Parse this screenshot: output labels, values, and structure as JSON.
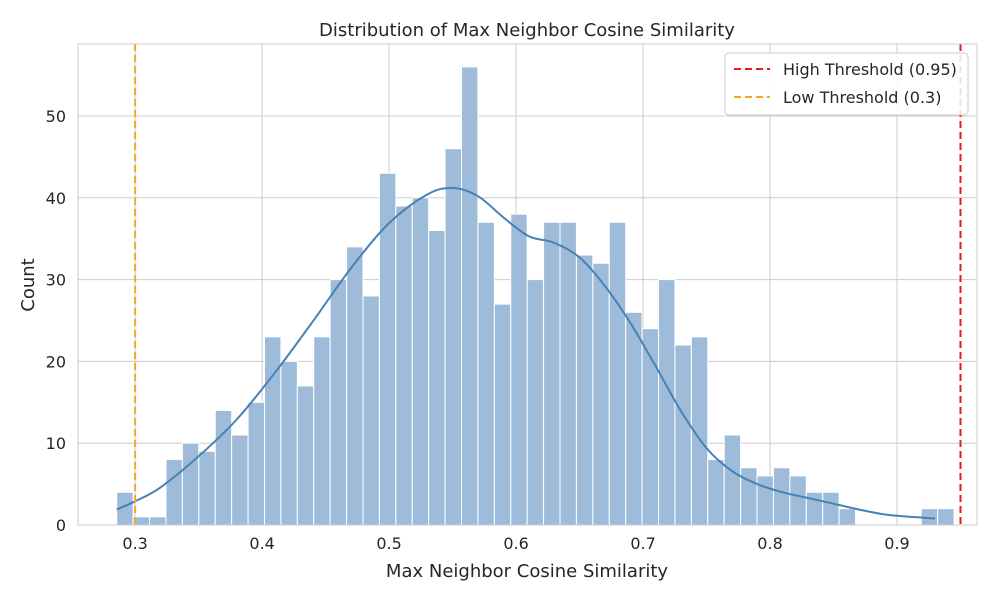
{
  "chart_data": {
    "type": "bar",
    "title": "Distribution of Max Neighbor Cosine Similarity",
    "xlabel": "Max Neighbor Cosine Similarity",
    "ylabel": "Count",
    "xlim": [
      0.255,
      0.963
    ],
    "ylim": [
      0,
      58.8
    ],
    "xticks": [
      0.3,
      0.4,
      0.5,
      0.6,
      0.7,
      0.8,
      0.9
    ],
    "xtick_labels": [
      "0.3",
      "0.4",
      "0.5",
      "0.6",
      "0.7",
      "0.8",
      "0.9"
    ],
    "yticks": [
      0,
      10,
      20,
      30,
      40,
      50
    ],
    "ytick_labels": [
      "0",
      "10",
      "20",
      "30",
      "40",
      "50"
    ],
    "grid": true,
    "bins": {
      "start": 0.2855,
      "width": 0.01293,
      "counts": [
        4,
        1,
        1,
        8,
        10,
        9,
        14,
        11,
        15,
        23,
        20,
        17,
        23,
        30,
        34,
        28,
        43,
        39,
        40,
        36,
        46,
        56,
        37,
        27,
        38,
        30,
        37,
        37,
        33,
        32,
        37,
        26,
        24,
        30,
        22,
        23,
        8,
        11,
        7,
        6,
        7,
        6,
        4,
        4,
        2,
        0,
        0,
        0,
        0,
        2,
        2
      ]
    },
    "bar_color": "#9ebcda",
    "kde": {
      "color": "#4682b4",
      "x": [
        0.2855,
        0.3,
        0.32,
        0.35,
        0.38,
        0.41,
        0.44,
        0.47,
        0.5,
        0.53,
        0.55,
        0.57,
        0.59,
        0.61,
        0.63,
        0.65,
        0.67,
        0.69,
        0.71,
        0.73,
        0.75,
        0.77,
        0.79,
        0.81,
        0.83,
        0.85,
        0.87,
        0.89,
        0.91,
        0.93
      ],
      "y": [
        1.9,
        2.9,
        4.6,
        8.4,
        12.9,
        18.6,
        24.9,
        31.4,
        36.9,
        40.4,
        41.2,
        40.2,
        37.6,
        35.3,
        34.5,
        32.7,
        29.2,
        24.7,
        19.4,
        13.9,
        9.4,
        6.6,
        5.0,
        4.0,
        3.3,
        2.6,
        1.9,
        1.3,
        1.0,
        0.8
      ]
    },
    "thresholds": [
      {
        "name": "High Threshold (0.95)",
        "value": 0.95,
        "color": "#e41a1c"
      },
      {
        "name": "Low Threshold (0.3)",
        "value": 0.3,
        "color": "#f5a623"
      }
    ],
    "legend_position": "top-right"
  }
}
